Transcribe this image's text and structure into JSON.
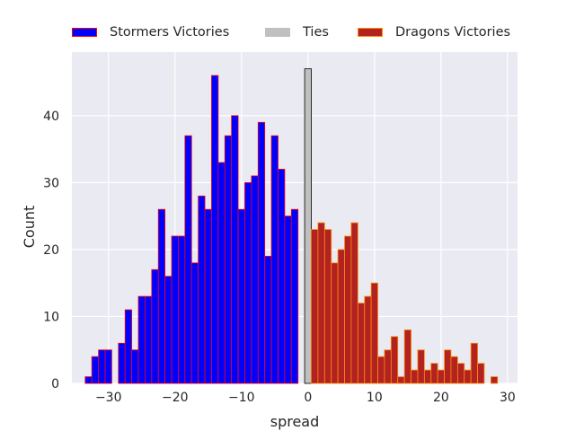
{
  "chart_data": {
    "type": "bar",
    "xlabel": "spread",
    "ylabel": "Count",
    "xlim": [
      -35.5,
      31.5
    ],
    "ylim": [
      0,
      49.5
    ],
    "x_ticks": [
      -30,
      -20,
      -10,
      0,
      10,
      20,
      30
    ],
    "y_ticks": [
      0,
      10,
      20,
      30,
      40
    ],
    "grid": true,
    "legend_position": "top",
    "bin_width": 1,
    "series": [
      {
        "name": "Stormers Victories",
        "color": "#0000ff",
        "edge_color": "#ff0000",
        "x": [
          -33,
          -32,
          -31,
          -30,
          -29,
          -28,
          -27,
          -26,
          -25,
          -24,
          -23,
          -22,
          -21,
          -20,
          -19,
          -18,
          -17,
          -16,
          -15,
          -14,
          -13,
          -12,
          -11,
          -10,
          -9,
          -8,
          -7,
          -6,
          -5,
          -4,
          -3,
          -2,
          -1
        ],
        "values": [
          1,
          4,
          5,
          5,
          0,
          6,
          11,
          5,
          13,
          13,
          17,
          26,
          16,
          22,
          22,
          37,
          18,
          28,
          26,
          46,
          33,
          37,
          40,
          26,
          30,
          31,
          39,
          19,
          37,
          32,
          25,
          26,
          0
        ]
      },
      {
        "name": "Ties",
        "color": "#c0c0c0",
        "edge_color": "#000000",
        "x": [
          0
        ],
        "values": [
          47
        ]
      },
      {
        "name": "Dragons Victories",
        "color": "#b22222",
        "edge_color": "#ff8c00",
        "x": [
          1,
          2,
          3,
          4,
          5,
          6,
          7,
          8,
          9,
          10,
          11,
          12,
          13,
          14,
          15,
          16,
          17,
          18,
          19,
          20,
          21,
          22,
          23,
          24,
          25,
          26,
          27,
          28
        ],
        "values": [
          23,
          24,
          23,
          18,
          20,
          22,
          24,
          12,
          13,
          15,
          4,
          5,
          7,
          1,
          8,
          2,
          5,
          2,
          3,
          2,
          5,
          4,
          3,
          2,
          6,
          3,
          0,
          1
        ]
      }
    ]
  },
  "x_tick_labels": [
    "−30",
    "−20",
    "−10",
    "0",
    "10",
    "20",
    "30"
  ],
  "y_tick_labels": [
    "0",
    "10",
    "20",
    "30",
    "40"
  ],
  "colors": {
    "plot_background": "#eaeaf2",
    "grid": "#ffffff",
    "text": "#262626"
  }
}
